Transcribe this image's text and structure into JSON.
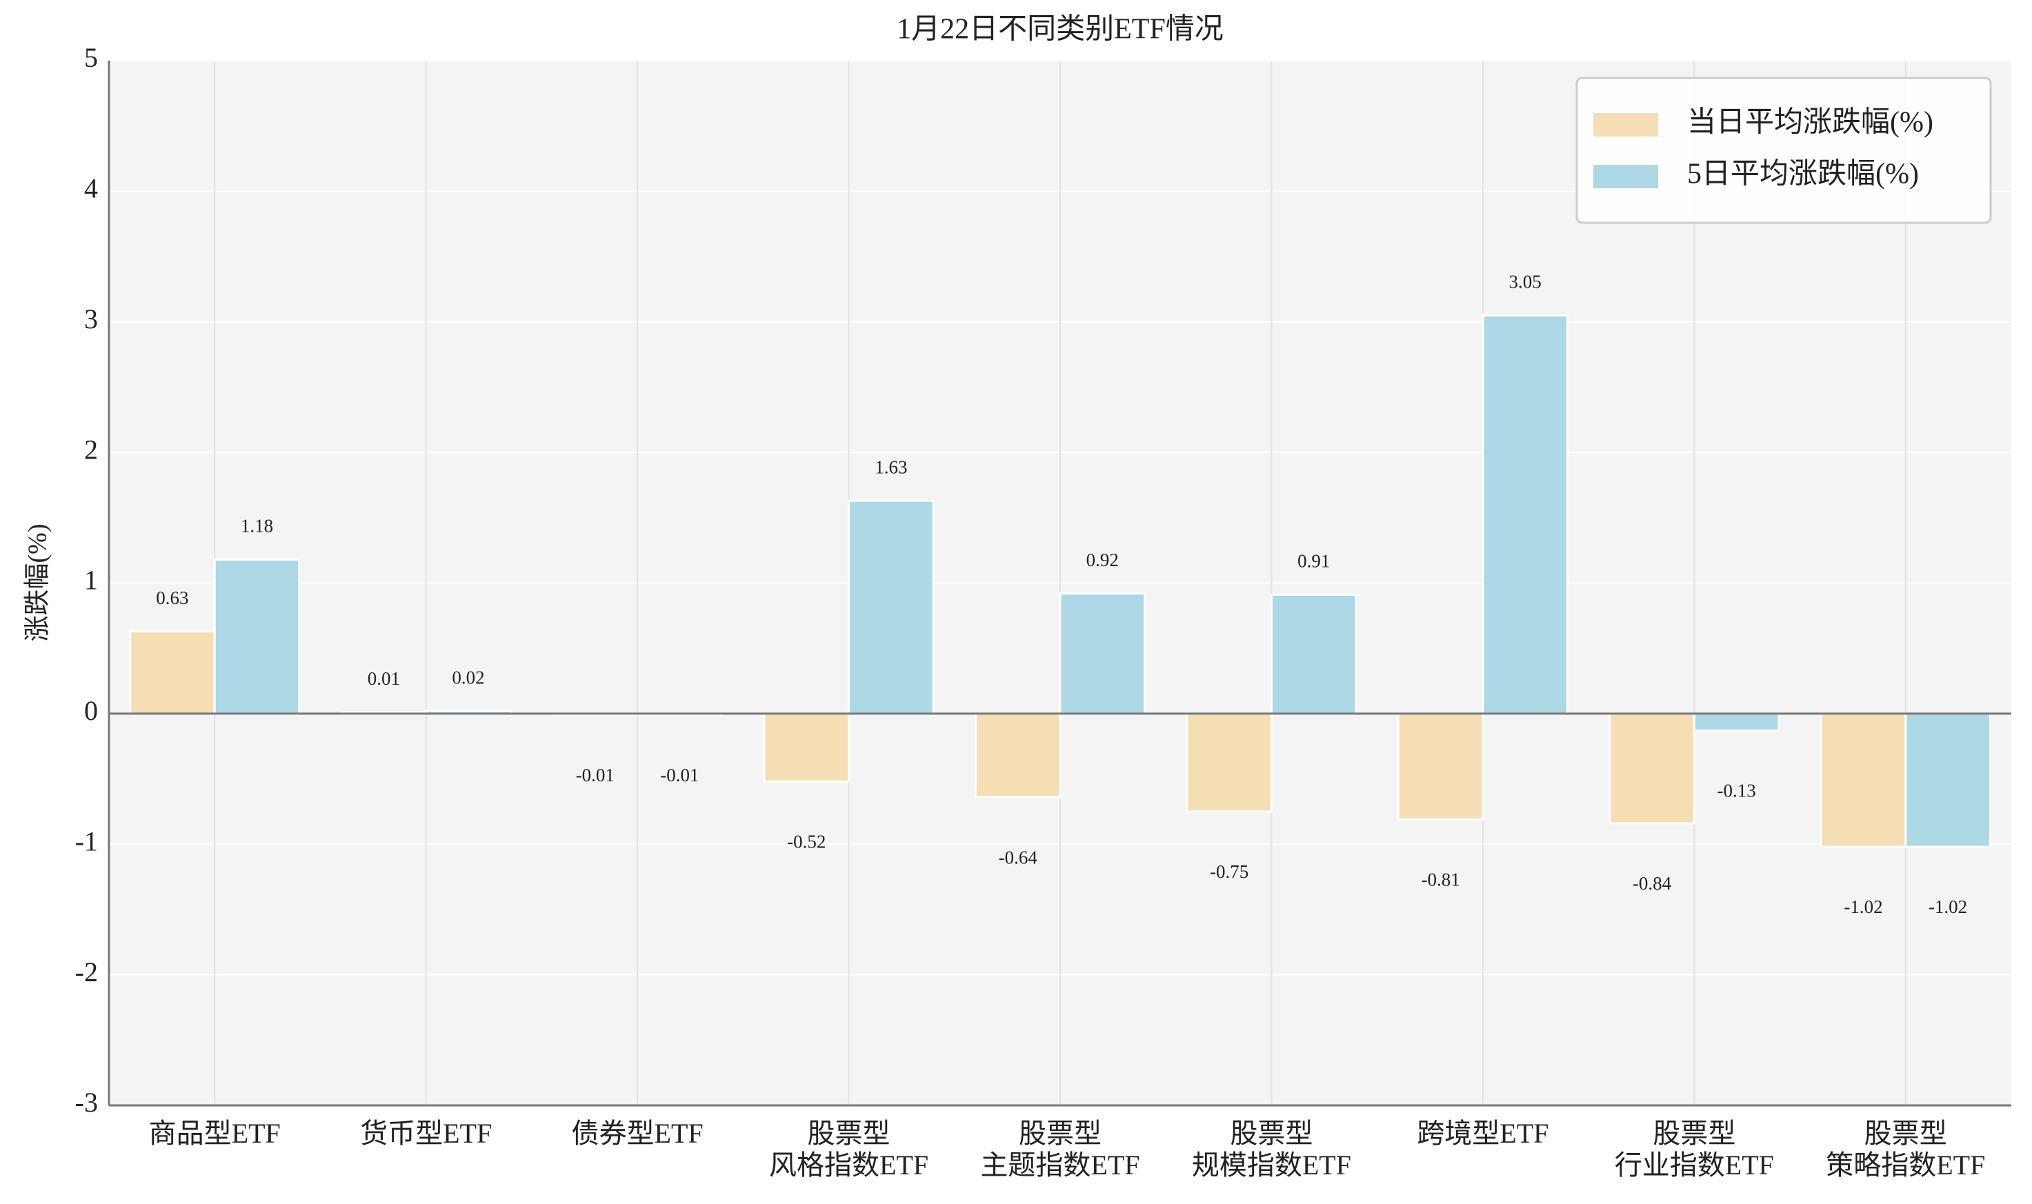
{
  "chart_data": {
    "type": "bar",
    "title": "1月22日不同类别ETF情况",
    "y_label": "涨跌幅(%)",
    "categories": [
      "商品型ETF",
      "货币型ETF",
      "债券型ETF",
      "股票型\n风格指数ETF",
      "股票型\n主题指数ETF",
      "股票型\n规模指数ETF",
      "跨境型ETF",
      "股票型\n行业指数ETF",
      "股票型\n策略指数ETF"
    ],
    "series": [
      {
        "name": "当日平均涨跌幅(%)",
        "color": "#f5deb3",
        "values": [
          0.63,
          0.01,
          -0.01,
          -0.52,
          -0.64,
          -0.75,
          -0.81,
          -0.84,
          -1.02
        ]
      },
      {
        "name": "5日平均涨跌幅(%)",
        "color": "#add8e6",
        "values": [
          1.18,
          0.02,
          -0.01,
          1.63,
          0.92,
          0.91,
          3.05,
          -0.13,
          -1.02
        ]
      }
    ],
    "ylim": [
      -3,
      5
    ],
    "yticks": [
      -3,
      -2,
      -1,
      0,
      1,
      2,
      3,
      4,
      5
    ],
    "grid": true,
    "legend": "upper right"
  }
}
